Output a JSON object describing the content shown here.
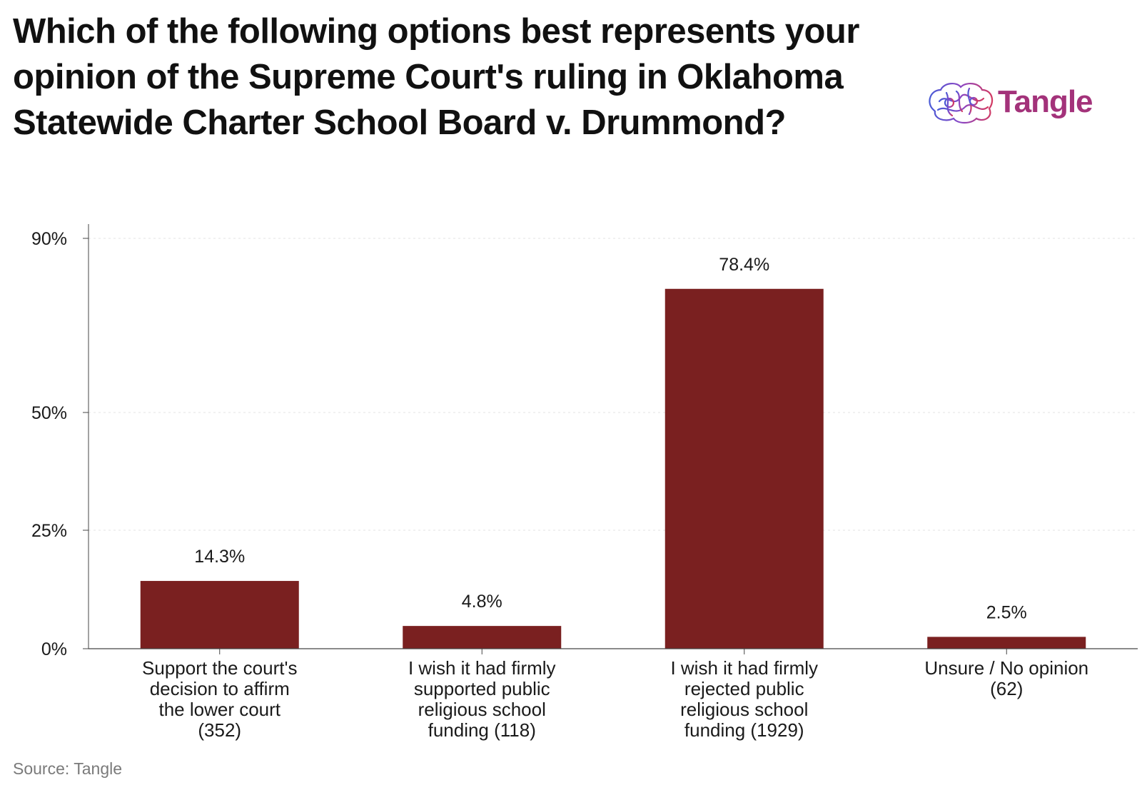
{
  "title": "Which of the following options best represents your opinion of the Supreme Court's ruling in Oklahoma Statewide Charter School Board v. Drummond?",
  "logo": {
    "text": "Tangle",
    "icon": "brain-icon"
  },
  "source": "Source: Tangle",
  "colors": {
    "bar": "#7a2020",
    "axis": "#444444",
    "grid": "#e3e3e3",
    "text": "#1a1a1a"
  },
  "chart_data": {
    "type": "bar",
    "title": "Which of the following options best represents your opinion of the Supreme Court's ruling in Oklahoma Statewide Charter School Board v. Drummond?",
    "categories": [
      "Support the court's decision to affirm the lower court (352)",
      "I wish it had firmly supported public religious school funding (118)",
      "I wish it had firmly rejected public religious school funding (1929)",
      "Unsure / No opinion (62)"
    ],
    "category_lines": [
      [
        "Support the court's",
        "decision to affirm",
        "the lower court",
        "(352)"
      ],
      [
        "I wish it had firmly",
        "supported public",
        "religious school",
        "funding (118)"
      ],
      [
        "I wish it had firmly",
        "rejected public",
        "religious school",
        "funding (1929)"
      ],
      [
        "Unsure / No opinion",
        "(62)"
      ]
    ],
    "values": [
      14.3,
      4.8,
      78.4,
      2.5
    ],
    "value_labels": [
      "14.3%",
      "4.8%",
      "78.4%",
      "2.5%"
    ],
    "yticks": [
      0,
      25,
      50,
      90
    ],
    "ytick_labels": [
      "0%",
      "25%",
      "50%",
      "90%"
    ],
    "ylim": [
      0,
      90
    ],
    "scale": "piecewise-linear",
    "grid": true,
    "legend": "none"
  }
}
